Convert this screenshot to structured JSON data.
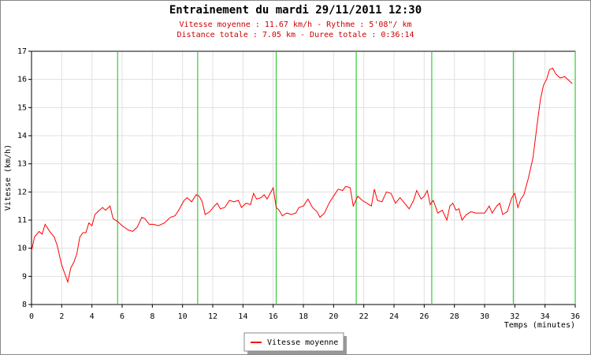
{
  "chart_data": {
    "type": "line",
    "title": "Entrainement du mardi 29/11/2011 12:30",
    "subtitle": [
      "Vitesse moyenne : 11.67 km/h - Rythme : 5'08\"/ km",
      "Distance totale : 7.05 km - Duree totale : 0:36:14"
    ],
    "x_label": "Temps (minutes)",
    "y_label": "Vitesse (km/h)",
    "x": [
      0,
      0.2,
      0.5,
      0.7,
      0.9,
      1.2,
      1.5,
      1.7,
      2.0,
      2.2,
      2.4,
      2.6,
      2.8,
      3.0,
      3.2,
      3.4,
      3.6,
      3.8,
      4.0,
      4.2,
      4.4,
      4.7,
      4.9,
      5.2,
      5.4,
      5.7,
      6.0,
      6.4,
      6.7,
      7.0,
      7.3,
      7.5,
      7.8,
      8.1,
      8.4,
      8.8,
      9.2,
      9.5,
      9.8,
      10.1,
      10.3,
      10.6,
      10.9,
      11.1,
      11.3,
      11.5,
      11.8,
      12.1,
      12.3,
      12.5,
      12.8,
      13.1,
      13.4,
      13.7,
      13.9,
      14.2,
      14.5,
      14.7,
      14.9,
      15.2,
      15.4,
      15.6,
      15.8,
      16.0,
      16.2,
      16.4,
      16.6,
      16.9,
      17.2,
      17.5,
      17.7,
      18.0,
      18.3,
      18.6,
      18.9,
      19.1,
      19.4,
      19.7,
      20.0,
      20.3,
      20.6,
      20.8,
      21.1,
      21.3,
      21.6,
      21.9,
      22.2,
      22.5,
      22.7,
      22.9,
      23.2,
      23.5,
      23.8,
      24.1,
      24.4,
      24.7,
      25.0,
      25.3,
      25.5,
      25.8,
      26.0,
      26.2,
      26.4,
      26.6,
      26.9,
      27.2,
      27.5,
      27.7,
      27.9,
      28.1,
      28.3,
      28.5,
      28.8,
      29.1,
      29.4,
      29.7,
      30.0,
      30.3,
      30.5,
      30.8,
      31.0,
      31.2,
      31.5,
      31.8,
      32.0,
      32.2,
      32.4,
      32.6,
      32.9,
      33.2,
      33.5,
      33.7,
      33.9,
      34.1,
      34.3,
      34.5,
      34.7,
      35.0,
      35.3,
      35.6,
      35.8
    ],
    "series": [
      {
        "name": "Vitesse moyenne",
        "color": "#ff0000",
        "values": [
          9.9,
          10.4,
          10.6,
          10.5,
          10.85,
          10.6,
          10.4,
          10.1,
          9.4,
          9.1,
          8.8,
          9.3,
          9.5,
          9.8,
          10.4,
          10.55,
          10.55,
          10.9,
          10.8,
          11.2,
          11.3,
          11.45,
          11.35,
          11.5,
          11.05,
          10.95,
          10.8,
          10.65,
          10.6,
          10.75,
          11.1,
          11.05,
          10.85,
          10.85,
          10.8,
          10.9,
          11.1,
          11.15,
          11.4,
          11.7,
          11.8,
          11.65,
          11.9,
          11.85,
          11.65,
          11.2,
          11.3,
          11.5,
          11.6,
          11.4,
          11.45,
          11.7,
          11.65,
          11.7,
          11.45,
          11.6,
          11.55,
          11.95,
          11.75,
          11.8,
          11.9,
          11.75,
          11.95,
          12.15,
          11.45,
          11.35,
          11.15,
          11.25,
          11.2,
          11.25,
          11.45,
          11.5,
          11.75,
          11.45,
          11.3,
          11.1,
          11.25,
          11.6,
          11.85,
          12.1,
          12.05,
          12.2,
          12.15,
          11.5,
          11.85,
          11.7,
          11.6,
          11.5,
          12.1,
          11.7,
          11.65,
          12.0,
          11.95,
          11.6,
          11.8,
          11.6,
          11.4,
          11.7,
          12.05,
          11.75,
          11.85,
          12.05,
          11.55,
          11.7,
          11.25,
          11.35,
          11.0,
          11.5,
          11.6,
          11.35,
          11.4,
          11.0,
          11.2,
          11.3,
          11.25,
          11.25,
          11.25,
          11.5,
          11.25,
          11.5,
          11.6,
          11.2,
          11.3,
          11.8,
          11.95,
          11.45,
          11.75,
          11.9,
          12.5,
          13.2,
          14.5,
          15.3,
          15.8,
          16.0,
          16.35,
          16.4,
          16.2,
          16.05,
          16.1,
          15.95,
          15.85
        ]
      }
    ],
    "laps": [
      5.7,
      11.0,
      16.2,
      21.5,
      26.5,
      31.9,
      36
    ],
    "laps_color": "#33cc33",
    "xlim": [
      0,
      36
    ],
    "xticks": [
      0,
      2,
      4,
      6,
      8,
      10,
      12,
      14,
      16,
      18,
      20,
      22,
      24,
      26,
      28,
      30,
      32,
      34,
      36
    ],
    "ylim": [
      8,
      17
    ],
    "yticks": [
      8,
      9,
      10,
      11,
      12,
      13,
      14,
      15,
      16,
      17
    ],
    "grid": true
  }
}
